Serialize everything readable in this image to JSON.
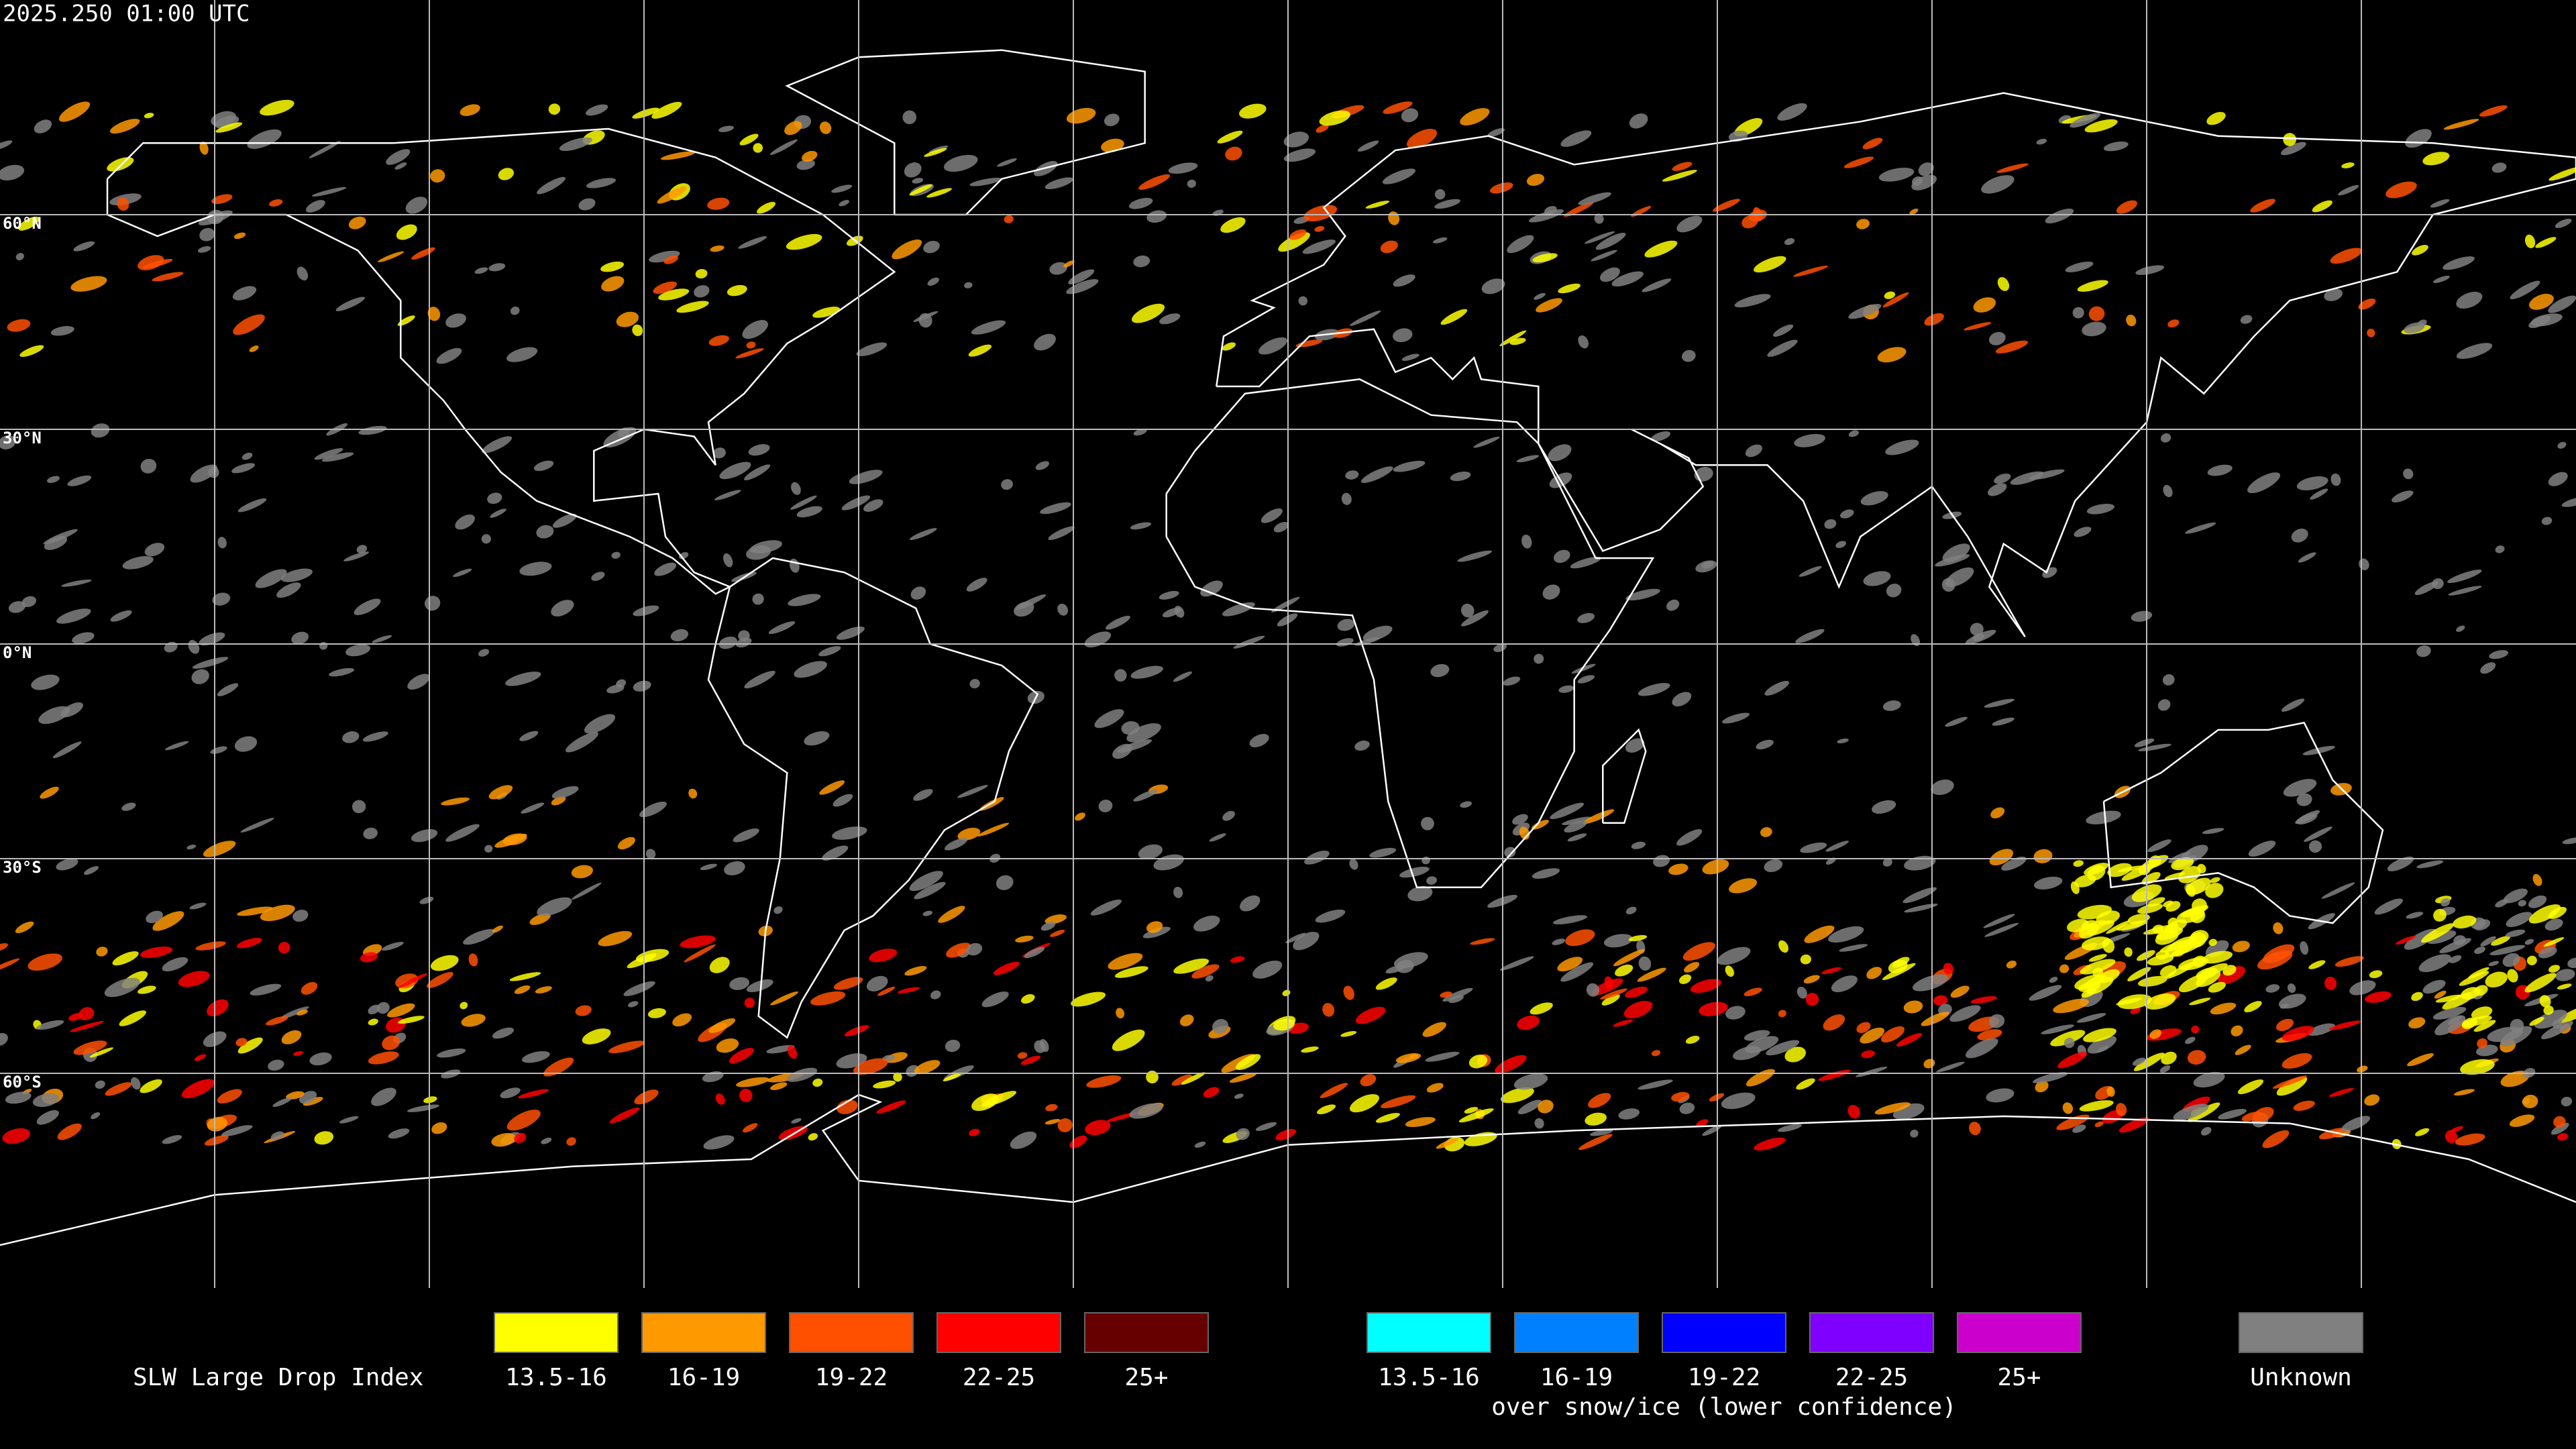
{
  "timestamp": "2025.250 01:00 UTC",
  "latitude_labels": [
    "60°N",
    "30°N",
    "0°N",
    "30°S",
    "60°S"
  ],
  "legend": {
    "title": "SLW Large Drop Index",
    "groups": [
      {
        "items": [
          {
            "label": "13.5-16",
            "color": "#ffff00"
          },
          {
            "label": "16-19",
            "color": "#ff9900"
          },
          {
            "label": "19-22",
            "color": "#ff5000"
          },
          {
            "label": "22-25",
            "color": "#ff0000"
          },
          {
            "label": "25+",
            "color": "#660000"
          }
        ]
      },
      {
        "items": [
          {
            "label": "13.5-16",
            "color": "#00ffff"
          },
          {
            "label": "16-19",
            "color": "#0080ff"
          },
          {
            "label": "19-22",
            "color": "#0000ff"
          },
          {
            "label": "22-25",
            "color": "#7f00ff"
          },
          {
            "label": "25+",
            "color": "#cc00cc"
          }
        ],
        "caption": "over snow/ice (lower confidence)"
      },
      {
        "items": [
          {
            "label": "Unknown",
            "color": "#808080"
          }
        ]
      }
    ]
  }
}
